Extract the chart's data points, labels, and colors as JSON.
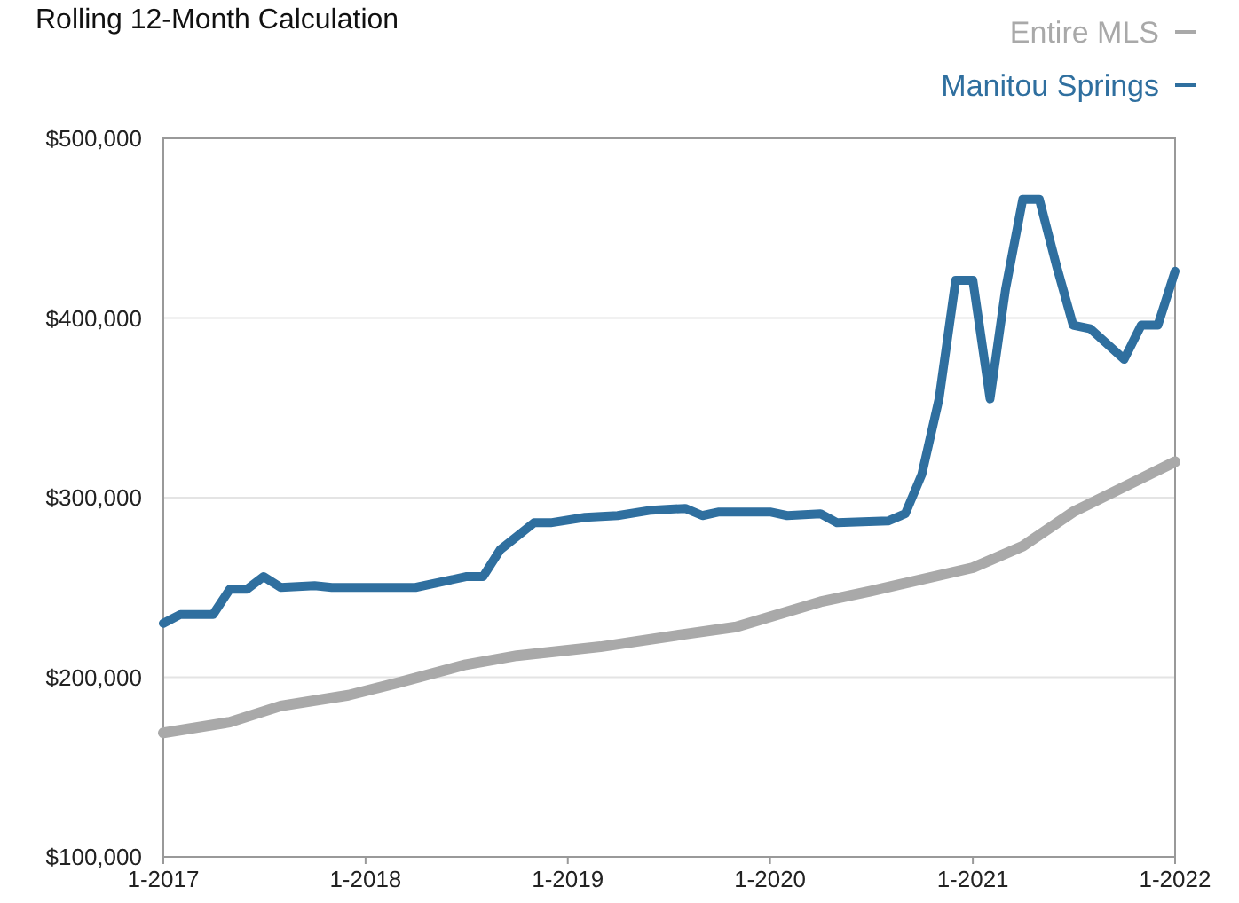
{
  "chart_data": {
    "type": "line",
    "title": "Rolling 12-Month Calculation",
    "legend": "top right",
    "grid": "y",
    "marker": "none",
    "line_style": "solid",
    "xlim": [
      "2017-01",
      "2022-01"
    ],
    "xticks": [
      {
        "value": "2017-01",
        "label": "1-2017"
      },
      {
        "value": "2018-01",
        "label": "1-2018"
      },
      {
        "value": "2019-01",
        "label": "1-2019"
      },
      {
        "value": "2020-01",
        "label": "1-2020"
      },
      {
        "value": "2021-01",
        "label": "1-2021"
      },
      {
        "value": "2022-01",
        "label": "1-2022"
      }
    ],
    "ylim": [
      100000,
      500000
    ],
    "yticks": [
      {
        "value": 100000,
        "label": "$100,000"
      },
      {
        "value": 200000,
        "label": "$200,000"
      },
      {
        "value": 300000,
        "label": "$300,000"
      },
      {
        "value": 400000,
        "label": "$400,000"
      },
      {
        "value": 500000,
        "label": "$500,000"
      }
    ],
    "series": [
      {
        "name": "Entire MLS",
        "color": "#a9a9a9",
        "x": [
          "2017-01",
          "2017-05",
          "2017-08",
          "2017-12",
          "2018-03",
          "2018-07",
          "2018-10",
          "2019-03",
          "2019-08",
          "2019-11",
          "2020-04",
          "2020-07",
          "2021-01",
          "2021-04",
          "2021-07",
          "2022-01"
        ],
        "values": [
          169000,
          175000,
          184000,
          190000,
          197000,
          207000,
          212000,
          217000,
          224000,
          228000,
          242000,
          248000,
          261000,
          273000,
          292000,
          320000
        ]
      },
      {
        "name": "Manitou Springs",
        "color": "#2f6f9f",
        "x": [
          "2017-01",
          "2017-02",
          "2017-04",
          "2017-05",
          "2017-06",
          "2017-07",
          "2017-08",
          "2017-10",
          "2017-11",
          "2018-04",
          "2018-06",
          "2018-07",
          "2018-08",
          "2018-09",
          "2018-11",
          "2018-12",
          "2019-02",
          "2019-04",
          "2019-06",
          "2019-08",
          "2019-09",
          "2019-10",
          "2020-01",
          "2020-02",
          "2020-04",
          "2020-05",
          "2020-08",
          "2020-09",
          "2020-10",
          "2020-11",
          "2020-12",
          "2021-01",
          "2021-02",
          "2021-03",
          "2021-04",
          "2021-05",
          "2021-06",
          "2021-07",
          "2021-08",
          "2021-10",
          "2021-11",
          "2021-12",
          "2022-01"
        ],
        "values": [
          230000,
          235000,
          235000,
          249000,
          249000,
          256000,
          250000,
          251000,
          250000,
          250000,
          254000,
          256000,
          256000,
          271000,
          286000,
          286000,
          289000,
          290000,
          293000,
          294000,
          290000,
          292000,
          292000,
          290000,
          291000,
          286000,
          287000,
          291000,
          313000,
          355000,
          421000,
          421000,
          355000,
          416000,
          466000,
          466000,
          429000,
          396000,
          394000,
          377000,
          396000,
          396000,
          426000
        ]
      }
    ]
  }
}
